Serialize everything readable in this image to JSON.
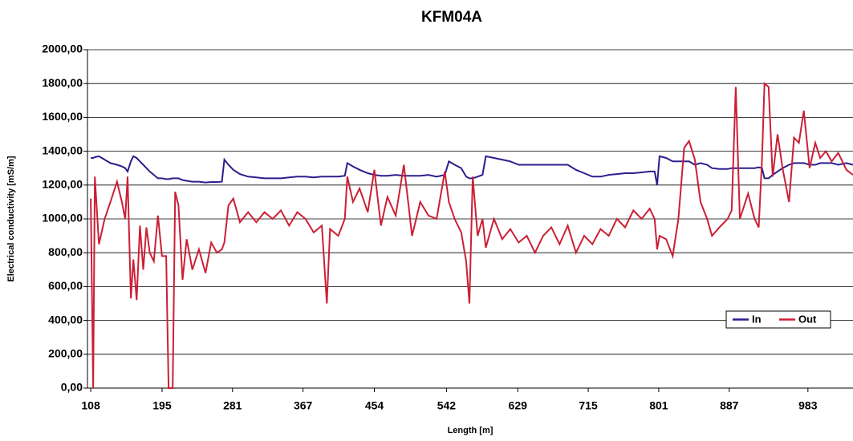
{
  "chart_data": {
    "type": "line",
    "title": "KFM04A",
    "xlabel": "Length [m]",
    "ylabel": "Electrical conductivity [mS/m]",
    "x": [
      108,
      111,
      113,
      118,
      125,
      132,
      140,
      146,
      150,
      153,
      157,
      160,
      164,
      168,
      172,
      176,
      180,
      185,
      190,
      195,
      200,
      203,
      208,
      211,
      215,
      220,
      225,
      232,
      240,
      248,
      255,
      262,
      268,
      271,
      276,
      282,
      290,
      300,
      310,
      320,
      330,
      340,
      350,
      360,
      370,
      380,
      390,
      396,
      400,
      410,
      418,
      421,
      428,
      436,
      446,
      454,
      462,
      470,
      480,
      490,
      500,
      510,
      520,
      530,
      540,
      545,
      552,
      560,
      566,
      570,
      574,
      580,
      586,
      590,
      600,
      610,
      620,
      630,
      640,
      650,
      660,
      670,
      680,
      690,
      700,
      710,
      720,
      730,
      740,
      750,
      760,
      770,
      780,
      790,
      796,
      799,
      802,
      810,
      818,
      825,
      832,
      838,
      845,
      852,
      860,
      866,
      875,
      885,
      890,
      895,
      900,
      910,
      918,
      923,
      927,
      930,
      935,
      940,
      946,
      952,
      960,
      966,
      972,
      978,
      985,
      992,
      998,
      1005,
      1012,
      1020,
      1030,
      1038
    ],
    "series": [
      {
        "name": "In",
        "color": "#2b1f8c",
        "values": [
          1360,
          1360,
          1365,
          1370,
          1350,
          1330,
          1320,
          1310,
          1300,
          1280,
          1340,
          1370,
          1360,
          1340,
          1320,
          1300,
          1280,
          1260,
          1240,
          1240,
          1235,
          1235,
          1240,
          1240,
          1240,
          1230,
          1225,
          1220,
          1220,
          1215,
          1218,
          1218,
          1220,
          1350,
          1320,
          1290,
          1265,
          1250,
          1245,
          1240,
          1240,
          1240,
          1245,
          1250,
          1250,
          1245,
          1250,
          1250,
          1250,
          1250,
          1255,
          1330,
          1310,
          1290,
          1270,
          1260,
          1255,
          1255,
          1260,
          1255,
          1255,
          1255,
          1260,
          1250,
          1260,
          1340,
          1320,
          1300,
          1250,
          1240,
          1240,
          1250,
          1260,
          1370,
          1360,
          1350,
          1340,
          1320,
          1320,
          1320,
          1320,
          1320,
          1320,
          1320,
          1290,
          1270,
          1250,
          1250,
          1260,
          1265,
          1270,
          1270,
          1275,
          1280,
          1280,
          1200,
          1370,
          1360,
          1340,
          1340,
          1340,
          1340,
          1320,
          1330,
          1320,
          1300,
          1295,
          1295,
          1300,
          1300,
          1300,
          1300,
          1300,
          1305,
          1300,
          1240,
          1240,
          1260,
          1280,
          1300,
          1320,
          1330,
          1330,
          1330,
          1320,
          1320,
          1330,
          1330,
          1330,
          1320,
          1330,
          1320
        ]
      },
      {
        "name": "Out",
        "color": "#cc1f35",
        "values": [
          1120,
          0,
          1250,
          850,
          1000,
          1100,
          1220,
          1100,
          1000,
          1250,
          530,
          760,
          520,
          960,
          700,
          950,
          800,
          750,
          1020,
          780,
          780,
          0,
          0,
          1160,
          1080,
          640,
          880,
          700,
          820,
          680,
          860,
          800,
          820,
          860,
          1080,
          1120,
          980,
          1040,
          980,
          1040,
          1000,
          1050,
          960,
          1040,
          1000,
          920,
          960,
          500,
          940,
          900,
          1000,
          1250,
          1100,
          1180,
          1040,
          1290,
          960,
          1130,
          1020,
          1320,
          900,
          1100,
          1020,
          1000,
          1280,
          1100,
          1000,
          920,
          750,
          500,
          1250,
          900,
          1000,
          830,
          1000,
          880,
          940,
          860,
          900,
          800,
          900,
          950,
          850,
          960,
          800,
          900,
          850,
          940,
          900,
          1000,
          950,
          1050,
          1000,
          1060,
          1000,
          820,
          900,
          880,
          780,
          1000,
          1420,
          1460,
          1350,
          1100,
          1000,
          900,
          950,
          1000,
          1050,
          1780,
          1000,
          1150,
          1000,
          950,
          1350,
          1800,
          1780,
          1250,
          1500,
          1300,
          1100,
          1480,
          1450,
          1640,
          1300,
          1450,
          1360,
          1400,
          1340,
          1390,
          1290,
          1260
        ]
      }
    ],
    "xlim": [
      104,
      1038
    ],
    "xticks": [
      108,
      195,
      281,
      367,
      454,
      542,
      629,
      715,
      801,
      887,
      983
    ],
    "ylim": [
      0,
      2000
    ],
    "yticks": [
      {
        "value": 0,
        "label": "0,00"
      },
      {
        "value": 200,
        "label": "200,00"
      },
      {
        "value": 400,
        "label": "400,00"
      },
      {
        "value": 600,
        "label": "600,00"
      },
      {
        "value": 800,
        "label": "800,00"
      },
      {
        "value": 1000,
        "label": "1000,00"
      },
      {
        "value": 1200,
        "label": "1200,00"
      },
      {
        "value": 1400,
        "label": "1400,00"
      },
      {
        "value": 1600,
        "label": "1600,00"
      },
      {
        "value": 1800,
        "label": "1800,00"
      },
      {
        "value": 2000,
        "label": "2000,00"
      }
    ],
    "grid": true,
    "legend": "right"
  }
}
